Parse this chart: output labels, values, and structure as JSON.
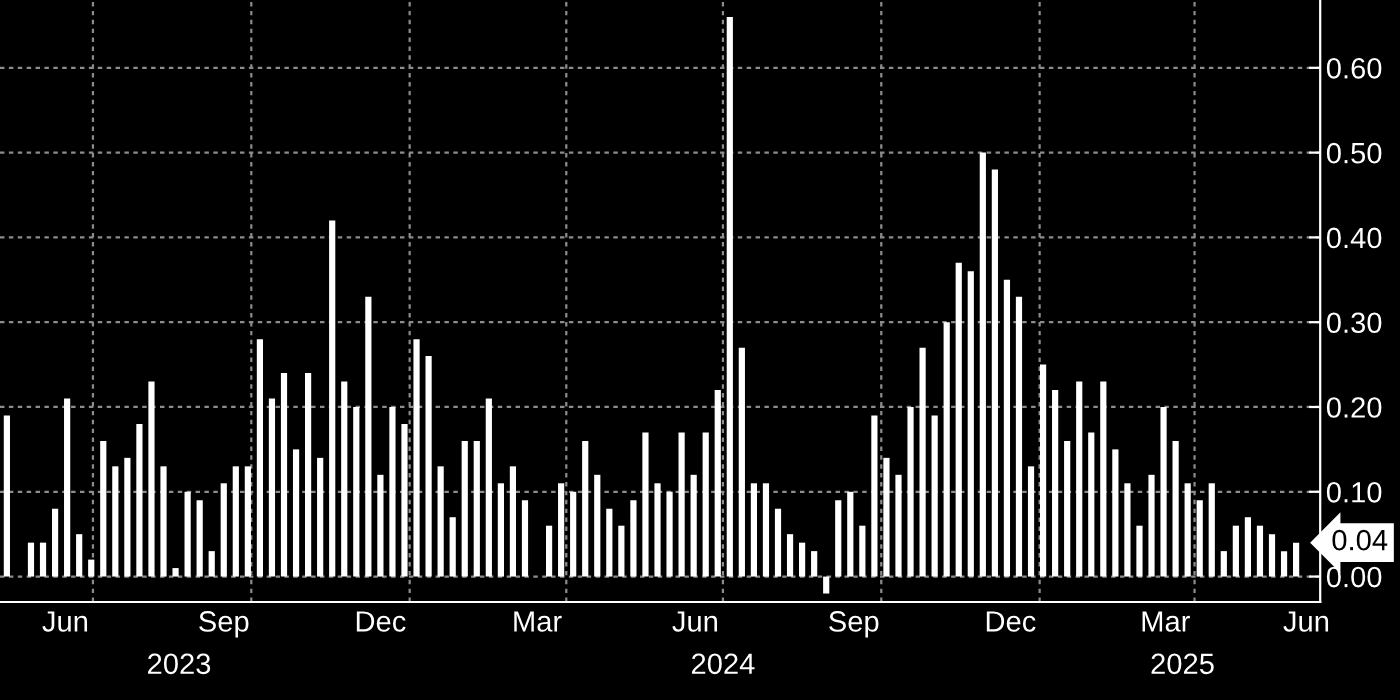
{
  "chart_data": {
    "type": "bar",
    "x": [
      "2023-05-12",
      "2023-05-19",
      "2023-05-26",
      "2023-06-02",
      "2023-06-09",
      "2023-06-16",
      "2023-06-23",
      "2023-06-30",
      "2023-07-07",
      "2023-07-14",
      "2023-07-21",
      "2023-07-28",
      "2023-08-04",
      "2023-08-11",
      "2023-08-18",
      "2023-08-25",
      "2023-09-01",
      "2023-09-08",
      "2023-09-15",
      "2023-09-22",
      "2023-09-29",
      "2023-10-06",
      "2023-10-13",
      "2023-10-20",
      "2023-10-27",
      "2023-11-03",
      "2023-11-10",
      "2023-11-17",
      "2023-11-24",
      "2023-12-01",
      "2023-12-08",
      "2023-12-15",
      "2023-12-22",
      "2023-12-29",
      "2024-01-05",
      "2024-01-12",
      "2024-01-19",
      "2024-01-26",
      "2024-02-02",
      "2024-02-09",
      "2024-02-16",
      "2024-02-23",
      "2024-03-01",
      "2024-03-08",
      "2024-03-15",
      "2024-03-22",
      "2024-03-29",
      "2024-04-05",
      "2024-04-12",
      "2024-04-19",
      "2024-04-26",
      "2024-05-03",
      "2024-05-10",
      "2024-05-17",
      "2024-05-24",
      "2024-05-31",
      "2024-06-07",
      "2024-06-14",
      "2024-06-21",
      "2024-06-28",
      "2024-07-05",
      "2024-07-12",
      "2024-07-19",
      "2024-07-26",
      "2024-08-02",
      "2024-08-09",
      "2024-08-16",
      "2024-08-23",
      "2024-08-30",
      "2024-09-06",
      "2024-09-13",
      "2024-09-20",
      "2024-09-27",
      "2024-10-04",
      "2024-10-11",
      "2024-10-18",
      "2024-10-25",
      "2024-11-01",
      "2024-11-08",
      "2024-11-15",
      "2024-11-22",
      "2024-11-29",
      "2024-12-06",
      "2024-12-13",
      "2024-12-20",
      "2024-12-27",
      "2025-01-03",
      "2025-01-10",
      "2025-01-17",
      "2025-01-24",
      "2025-01-31",
      "2025-02-07",
      "2025-02-14",
      "2025-02-21",
      "2025-02-28",
      "2025-03-07",
      "2025-03-14",
      "2025-03-21",
      "2025-03-28",
      "2025-04-04",
      "2025-04-11",
      "2025-04-18",
      "2025-04-25",
      "2025-05-02",
      "2025-05-09",
      "2025-05-16",
      "2025-05-23",
      "2025-05-30"
    ],
    "values": [
      0.19,
      0.0,
      0.04,
      0.04,
      0.08,
      0.21,
      0.05,
      0.02,
      0.16,
      0.13,
      0.14,
      0.18,
      0.23,
      0.13,
      0.01,
      0.1,
      0.09,
      0.03,
      0.11,
      0.13,
      0.13,
      0.28,
      0.21,
      0.24,
      0.15,
      0.24,
      0.14,
      0.42,
      0.23,
      0.2,
      0.33,
      0.12,
      0.2,
      0.18,
      0.28,
      0.26,
      0.13,
      0.07,
      0.16,
      0.16,
      0.21,
      0.11,
      0.13,
      0.09,
      0.0,
      0.06,
      0.11,
      0.1,
      0.16,
      0.12,
      0.08,
      0.06,
      0.09,
      0.17,
      0.11,
      0.1,
      0.17,
      0.12,
      0.17,
      0.22,
      0.66,
      0.27,
      0.11,
      0.11,
      0.08,
      0.05,
      0.04,
      0.03,
      -0.02,
      0.09,
      0.1,
      0.06,
      0.19,
      0.14,
      0.12,
      0.2,
      0.27,
      0.19,
      0.3,
      0.37,
      0.36,
      0.5,
      0.48,
      0.35,
      0.33,
      0.13,
      0.25,
      0.22,
      0.16,
      0.23,
      0.17,
      0.23,
      0.15,
      0.11,
      0.06,
      0.12,
      0.2,
      0.16,
      0.11,
      0.09,
      0.11,
      0.03,
      0.06,
      0.07,
      0.06,
      0.05,
      0.03,
      0.04
    ],
    "value_labels": [
      null,
      null,
      null,
      null,
      null,
      null,
      null,
      null,
      null,
      null,
      null,
      null,
      null,
      null,
      null,
      null,
      null,
      null,
      null,
      null,
      null,
      null,
      null,
      null,
      null,
      null,
      null,
      null,
      null,
      null,
      null,
      null,
      null,
      null,
      null,
      null,
      null,
      null,
      null,
      null,
      null,
      null,
      null,
      null,
      null,
      null,
      null,
      null,
      null,
      null,
      null,
      null,
      null,
      null,
      null,
      null,
      null,
      null,
      null,
      null,
      null,
      null,
      null,
      null,
      null,
      null,
      null,
      null,
      null,
      null,
      null,
      null,
      null,
      null,
      null,
      null,
      null,
      null,
      null,
      null,
      null,
      null,
      null,
      null,
      null,
      null,
      null,
      null,
      null,
      null,
      null,
      null,
      null,
      null,
      null,
      null,
      null,
      null,
      null,
      null,
      null,
      null,
      null,
      null,
      null,
      null,
      null,
      "0.04"
    ],
    "color": "#ffffff",
    "xlim": [
      "2023-05-08",
      "2025-06-13"
    ],
    "xticks": [
      {
        "value": "2023-06-15",
        "label": "Jun"
      },
      {
        "value": "2023-07-01",
        "label": null
      },
      {
        "value": "2023-09-15",
        "label": "Sep"
      },
      {
        "value": "2023-10-01",
        "label": null
      },
      {
        "value": "2023-12-15",
        "label": "Dec"
      },
      {
        "value": "2024-01-01",
        "label": null
      },
      {
        "value": "2024-03-15",
        "label": "Mar"
      },
      {
        "value": "2024-04-01",
        "label": null
      },
      {
        "value": "2024-06-15",
        "label": "Jun"
      },
      {
        "value": "2024-07-01",
        "label": null
      },
      {
        "value": "2024-09-15",
        "label": "Sep"
      },
      {
        "value": "2024-10-01",
        "label": null
      },
      {
        "value": "2024-12-15",
        "label": "Dec"
      },
      {
        "value": "2025-01-01",
        "label": null
      },
      {
        "value": "2025-03-15",
        "label": "Mar"
      },
      {
        "value": "2025-04-01",
        "label": null
      },
      {
        "value": "2025-06-05",
        "label": "Jun"
      }
    ],
    "x2lim": [
      "2023-05-08",
      "2025-06-13"
    ],
    "x2ticks": [
      {
        "value": "2023-08-20",
        "label": "2023"
      },
      {
        "value": "2024-01-01",
        "label": null
      },
      {
        "value": "2024-07-01",
        "label": "2024"
      },
      {
        "value": "2025-01-01",
        "label": null
      },
      {
        "value": "2025-03-25",
        "label": "2025"
      }
    ],
    "ylim": [
      -0.03,
      0.68
    ],
    "yticks": [
      "0.00",
      "0.10",
      "0.20",
      "0.30",
      "0.40",
      "0.50",
      "0.60"
    ],
    "grid": true
  }
}
